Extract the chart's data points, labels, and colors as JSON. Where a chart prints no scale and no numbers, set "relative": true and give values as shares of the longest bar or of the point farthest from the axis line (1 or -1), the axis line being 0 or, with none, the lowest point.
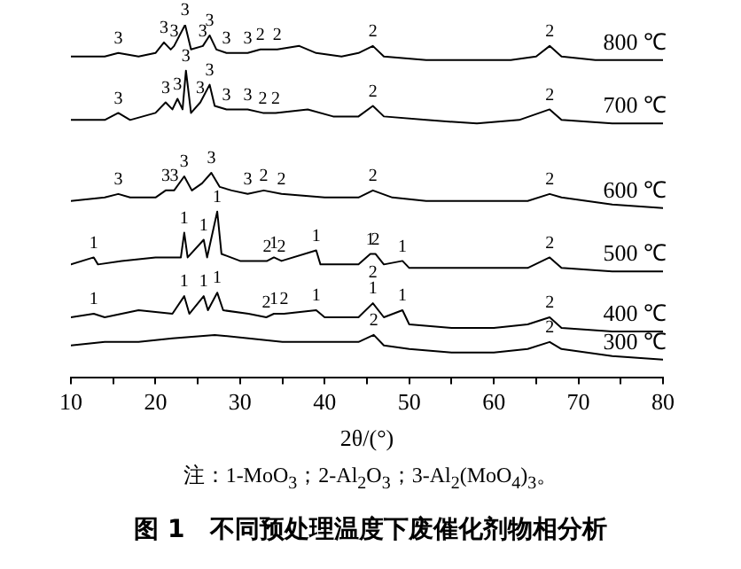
{
  "chart_data": {
    "type": "line",
    "relative": true,
    "marker": "none",
    "xlabel": "2θ/(°)",
    "title": "图 1　不同预处理温度下废催化剂物相分析",
    "xlim": [
      10,
      80
    ],
    "xticks": [
      10,
      {
        "value": 15,
        "label": null
      },
      20,
      {
        "value": 25,
        "label": null
      },
      30,
      {
        "value": 35,
        "label": null
      },
      40,
      {
        "value": 45,
        "label": null
      },
      50,
      {
        "value": 55,
        "label": null
      },
      60,
      {
        "value": 65,
        "label": null
      },
      70,
      {
        "value": 75,
        "label": null
      },
      80
    ],
    "series": [
      {
        "name": "800 ℃",
        "color": "#000000",
        "x": [
          10,
          14,
          15.6,
          18,
          20,
          21,
          21.8,
          22.2,
          23.5,
          24.2,
          25.6,
          26.4,
          27.2,
          28.4,
          30.9,
          32.4,
          34.4,
          37,
          39,
          42,
          44,
          45.7,
          47,
          52,
          58,
          62,
          65,
          66.6,
          68,
          72,
          80
        ],
        "values": [
          0.91,
          0.91,
          0.92,
          0.91,
          0.92,
          0.95,
          0.93,
          0.94,
          1.0,
          0.93,
          0.94,
          0.97,
          0.93,
          0.92,
          0.92,
          0.93,
          0.93,
          0.94,
          0.92,
          0.91,
          0.92,
          0.94,
          0.91,
          0.9,
          0.9,
          0.9,
          0.91,
          0.94,
          0.91,
          0.9,
          0.9
        ]
      },
      {
        "name": "700 ℃",
        "color": "#000000",
        "x": [
          10,
          14,
          15.6,
          17,
          20,
          21.2,
          22.0,
          22.6,
          23.2,
          23.6,
          24.2,
          25.3,
          26.4,
          27,
          28.4,
          30.9,
          32.7,
          34.2,
          38,
          41,
          44,
          45.7,
          47,
          52,
          58,
          63,
          66.6,
          68,
          74,
          80
        ],
        "values": [
          0.73,
          0.73,
          0.75,
          0.73,
          0.75,
          0.78,
          0.76,
          0.79,
          0.76,
          0.87,
          0.75,
          0.78,
          0.83,
          0.77,
          0.76,
          0.76,
          0.75,
          0.75,
          0.76,
          0.74,
          0.74,
          0.77,
          0.74,
          0.73,
          0.72,
          0.73,
          0.76,
          0.73,
          0.72,
          0.72
        ]
      },
      {
        "name": "600 ℃",
        "color": "#000000",
        "x": [
          10,
          14,
          15.6,
          17,
          20,
          21.2,
          22.2,
          23.4,
          24.3,
          25.5,
          26.6,
          27.6,
          29,
          30.9,
          32.8,
          34.9,
          40,
          44,
          45.7,
          48,
          52,
          58,
          64,
          66.6,
          68,
          74,
          80
        ],
        "values": [
          0.5,
          0.51,
          0.52,
          0.51,
          0.51,
          0.53,
          0.53,
          0.57,
          0.53,
          0.55,
          0.58,
          0.54,
          0.53,
          0.52,
          0.53,
          0.52,
          0.51,
          0.51,
          0.53,
          0.51,
          0.5,
          0.5,
          0.5,
          0.52,
          0.51,
          0.49,
          0.48
        ]
      },
      {
        "name": "500 ℃",
        "color": "#000000",
        "x": [
          10,
          12.7,
          13.2,
          16,
          20,
          23,
          23.4,
          23.8,
          25.7,
          26.1,
          27.3,
          27.8,
          30,
          33.2,
          34,
          34.9,
          39,
          39.5,
          44,
          45.4,
          46.0,
          47,
          49.2,
          50,
          55,
          60,
          64,
          66.6,
          68,
          74,
          80
        ],
        "values": [
          0.32,
          0.34,
          0.32,
          0.33,
          0.34,
          0.34,
          0.41,
          0.34,
          0.39,
          0.34,
          0.47,
          0.35,
          0.33,
          0.33,
          0.34,
          0.33,
          0.36,
          0.32,
          0.32,
          0.35,
          0.35,
          0.32,
          0.33,
          0.31,
          0.31,
          0.31,
          0.31,
          0.34,
          0.31,
          0.3,
          0.3
        ]
      },
      {
        "name": "400 ℃",
        "color": "#000000",
        "x": [
          10,
          12.7,
          14,
          18,
          22,
          23.4,
          24,
          25.7,
          26.2,
          27.3,
          28,
          31,
          33.1,
          34,
          35.2,
          39,
          40,
          44,
          45.7,
          47,
          49.2,
          50,
          55,
          60,
          64,
          66.6,
          68,
          74,
          80
        ],
        "values": [
          0.17,
          0.18,
          0.17,
          0.19,
          0.18,
          0.23,
          0.18,
          0.23,
          0.19,
          0.24,
          0.19,
          0.18,
          0.17,
          0.18,
          0.18,
          0.19,
          0.17,
          0.17,
          0.21,
          0.17,
          0.19,
          0.15,
          0.14,
          0.14,
          0.15,
          0.17,
          0.14,
          0.13,
          0.13
        ]
      },
      {
        "name": "300 ℃",
        "color": "#000000",
        "x": [
          10,
          14,
          18,
          22,
          27,
          31,
          35,
          40,
          44,
          45.8,
          47,
          50,
          55,
          60,
          64,
          66.6,
          68,
          74,
          80
        ],
        "values": [
          0.09,
          0.1,
          0.1,
          0.11,
          0.12,
          0.11,
          0.1,
          0.1,
          0.1,
          0.12,
          0.09,
          0.08,
          0.07,
          0.07,
          0.08,
          0.1,
          0.08,
          0.06,
          0.05
        ]
      }
    ],
    "annotations": [
      {
        "text": "3",
        "x": 15.6,
        "y": 0.92
      },
      {
        "text": "3",
        "x": 21,
        "y": 0.95
      },
      {
        "text": "3",
        "x": 22.2,
        "y": 0.94
      },
      {
        "text": "3",
        "x": 23.5,
        "y": 1.0
      },
      {
        "text": "3",
        "x": 25.6,
        "y": 0.94
      },
      {
        "text": "3",
        "x": 26.4,
        "y": 0.97
      },
      {
        "text": "3",
        "x": 28.4,
        "y": 0.92
      },
      {
        "text": "3",
        "x": 30.9,
        "y": 0.92
      },
      {
        "text": "2",
        "x": 32.4,
        "y": 0.93
      },
      {
        "text": "2",
        "x": 34.4,
        "y": 0.93
      },
      {
        "text": "2",
        "x": 45.7,
        "y": 0.94
      },
      {
        "text": "2",
        "x": 66.6,
        "y": 0.94
      },
      {
        "text": "3",
        "x": 15.6,
        "y": 0.75
      },
      {
        "text": "3",
        "x": 21.2,
        "y": 0.78
      },
      {
        "text": "3",
        "x": 22.6,
        "y": 0.79
      },
      {
        "text": "3",
        "x": 23.6,
        "y": 0.87
      },
      {
        "text": "3",
        "x": 25.3,
        "y": 0.78
      },
      {
        "text": "3",
        "x": 26.4,
        "y": 0.83
      },
      {
        "text": "3",
        "x": 28.4,
        "y": 0.76
      },
      {
        "text": "3",
        "x": 30.9,
        "y": 0.76
      },
      {
        "text": "2",
        "x": 32.7,
        "y": 0.75
      },
      {
        "text": "2",
        "x": 34.2,
        "y": 0.75
      },
      {
        "text": "2",
        "x": 45.7,
        "y": 0.77
      },
      {
        "text": "2",
        "x": 66.6,
        "y": 0.76
      },
      {
        "text": "3",
        "x": 15.6,
        "y": 0.52
      },
      {
        "text": "3",
        "x": 21.2,
        "y": 0.53
      },
      {
        "text": "3",
        "x": 22.2,
        "y": 0.53
      },
      {
        "text": "3",
        "x": 23.4,
        "y": 0.57
      },
      {
        "text": "3",
        "x": 26.6,
        "y": 0.58
      },
      {
        "text": "3",
        "x": 30.9,
        "y": 0.52
      },
      {
        "text": "2",
        "x": 32.8,
        "y": 0.53
      },
      {
        "text": "2",
        "x": 34.9,
        "y": 0.52
      },
      {
        "text": "2",
        "x": 45.7,
        "y": 0.53
      },
      {
        "text": "2",
        "x": 66.6,
        "y": 0.52
      },
      {
        "text": "1",
        "x": 12.7,
        "y": 0.34
      },
      {
        "text": "1",
        "x": 23.4,
        "y": 0.41
      },
      {
        "text": "1",
        "x": 25.7,
        "y": 0.39
      },
      {
        "text": "1",
        "x": 27.3,
        "y": 0.47
      },
      {
        "text": "2",
        "x": 33.2,
        "y": 0.33
      },
      {
        "text": "1",
        "x": 34,
        "y": 0.34
      },
      {
        "text": "2",
        "x": 34.9,
        "y": 0.33
      },
      {
        "text": "1",
        "x": 39,
        "y": 0.36
      },
      {
        "text": "1",
        "x": 45.4,
        "y": 0.35
      },
      {
        "text": "2",
        "x": 46.0,
        "y": 0.35
      },
      {
        "text": "1",
        "x": 49.2,
        "y": 0.33
      },
      {
        "text": "2",
        "x": 66.6,
        "y": 0.34
      },
      {
        "text": "1",
        "x": 12.7,
        "y": 0.18
      },
      {
        "text": "1",
        "x": 23.4,
        "y": 0.23
      },
      {
        "text": "1",
        "x": 25.7,
        "y": 0.23
      },
      {
        "text": "1",
        "x": 27.3,
        "y": 0.24
      },
      {
        "text": "2",
        "x": 33.1,
        "y": 0.17
      },
      {
        "text": "1",
        "x": 34,
        "y": 0.18
      },
      {
        "text": "2",
        "x": 35.2,
        "y": 0.18
      },
      {
        "text": "1",
        "x": 39,
        "y": 0.19
      },
      {
        "text": "1",
        "x": 45.7,
        "y": 0.21
      },
      {
        "text": "2",
        "x": 45.7,
        "y": 0.21
      },
      {
        "text": "1",
        "x": 49.2,
        "y": 0.19
      },
      {
        "text": "2",
        "x": 66.6,
        "y": 0.17
      },
      {
        "text": "2",
        "x": 45.8,
        "y": 0.12
      },
      {
        "text": "2",
        "x": 66.6,
        "y": 0.1
      },
      "注：1-MoO$_{3}$；2-Al$_{2}$O$_{3}$；3-Al$_{2}$(MoO$_{4}$)$_{3}$。"
    ]
  }
}
